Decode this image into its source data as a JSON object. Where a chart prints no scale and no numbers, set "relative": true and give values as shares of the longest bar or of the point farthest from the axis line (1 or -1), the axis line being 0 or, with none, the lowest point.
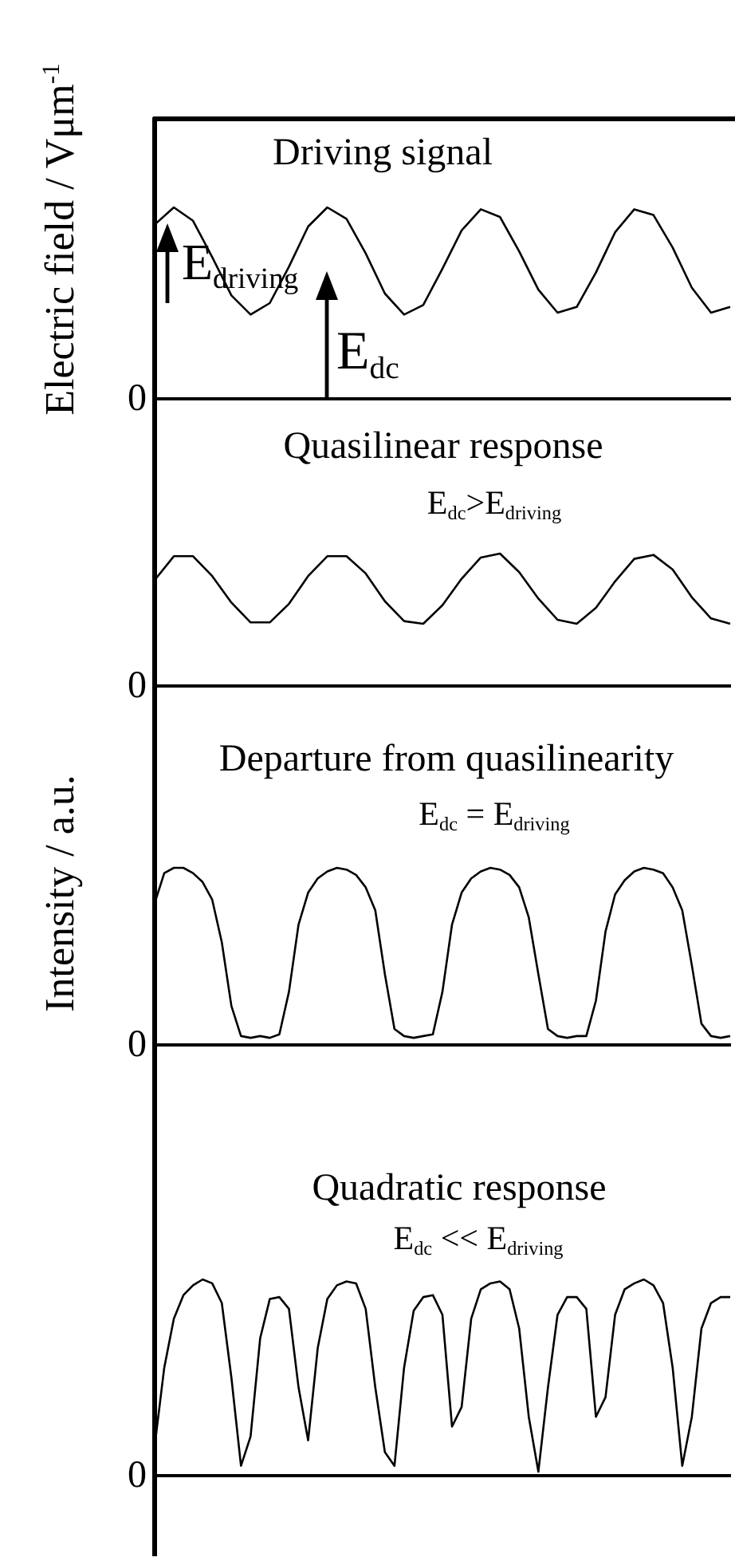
{
  "chart_data": [
    {
      "type": "line",
      "title": "Driving signal",
      "ylabel": "Electric field / Vμm$^{-1}$",
      "relative": true,
      "marker": "none",
      "annotations": [
        "E$_{driving}$",
        "E$_{dc}$",
        "0"
      ],
      "categories": [
        null,
        null,
        null,
        null,
        null,
        null,
        null,
        null,
        null,
        null,
        null,
        null,
        null,
        null,
        null,
        null,
        null,
        null,
        null,
        null,
        null,
        null,
        null,
        null,
        null,
        null,
        null,
        null,
        null,
        null,
        null
      ],
      "color": "#000000",
      "values": [
        0.91,
        1.0,
        0.93,
        0.74,
        0.54,
        0.44,
        0.5,
        0.69,
        0.9,
        1.0,
        0.94,
        0.76,
        0.55,
        0.44,
        0.49,
        0.68,
        0.88,
        0.99,
        0.95,
        0.77,
        0.57,
        0.45,
        0.48,
        0.66,
        0.87,
        0.99,
        0.96,
        0.79,
        0.58,
        0.45,
        0.48
      ]
    },
    {
      "type": "line",
      "title": "Quasilinear response",
      "relative": true,
      "marker": "none",
      "annotations": [
        "E$_{dc}$>E$_{driving}$",
        "0"
      ],
      "categories": [
        null,
        null,
        null,
        null,
        null,
        null,
        null,
        null,
        null,
        null,
        null,
        null,
        null,
        null,
        null,
        null,
        null,
        null,
        null,
        null,
        null,
        null,
        null,
        null,
        null,
        null,
        null,
        null,
        null,
        null,
        null
      ],
      "color": "#000000",
      "values": [
        0.8,
        0.98,
        0.98,
        0.83,
        0.63,
        0.48,
        0.48,
        0.62,
        0.83,
        0.98,
        0.98,
        0.85,
        0.64,
        0.49,
        0.47,
        0.61,
        0.81,
        0.97,
        1.0,
        0.86,
        0.66,
        0.5,
        0.47,
        0.59,
        0.79,
        0.96,
        0.99,
        0.88,
        0.67,
        0.51,
        0.47
      ]
    },
    {
      "type": "line",
      "title": "Departure from quasilinearity",
      "ylabel": "Intensity / a.u.",
      "relative": true,
      "marker": "none",
      "annotations": [
        "E$_{dc}$ = E$_{driving}$",
        "0"
      ],
      "categories": [
        null,
        null,
        null,
        null,
        null,
        null,
        null,
        null,
        null,
        null,
        null,
        null,
        null,
        null,
        null,
        null,
        null,
        null,
        null,
        null,
        null,
        null,
        null,
        null,
        null,
        null,
        null,
        null,
        null,
        null,
        null,
        null,
        null,
        null,
        null,
        null,
        null,
        null,
        null,
        null,
        null,
        null,
        null,
        null,
        null,
        null,
        null,
        null,
        null,
        null,
        null,
        null,
        null,
        null,
        null,
        null,
        null,
        null,
        null,
        null,
        null
      ],
      "color": "#000000",
      "values": [
        0.8,
        0.97,
        1.0,
        1.0,
        0.97,
        0.92,
        0.82,
        0.58,
        0.22,
        0.05,
        0.04,
        0.05,
        0.04,
        0.06,
        0.3,
        0.68,
        0.86,
        0.94,
        0.98,
        1.0,
        0.99,
        0.96,
        0.89,
        0.76,
        0.4,
        0.09,
        0.05,
        0.04,
        0.05,
        0.06,
        0.3,
        0.68,
        0.86,
        0.94,
        0.98,
        1.0,
        0.99,
        0.96,
        0.89,
        0.72,
        0.4,
        0.09,
        0.05,
        0.04,
        0.05,
        0.05,
        0.25,
        0.64,
        0.85,
        0.93,
        0.98,
        1.0,
        0.99,
        0.97,
        0.89,
        0.76,
        0.45,
        0.12,
        0.05,
        0.04,
        0.05
      ]
    },
    {
      "type": "line",
      "title": "Quadratic response",
      "relative": true,
      "marker": "none",
      "annotations": [
        "E$_{dc}$ << E$_{driving}$",
        "0"
      ],
      "categories": [
        null,
        null,
        null,
        null,
        null,
        null,
        null,
        null,
        null,
        null,
        null,
        null,
        null,
        null,
        null,
        null,
        null,
        null,
        null,
        null,
        null,
        null,
        null,
        null,
        null,
        null,
        null,
        null,
        null,
        null,
        null,
        null,
        null,
        null,
        null,
        null,
        null,
        null,
        null,
        null,
        null,
        null,
        null,
        null,
        null,
        null,
        null,
        null,
        null,
        null,
        null,
        null,
        null,
        null,
        null,
        null,
        null,
        null,
        null,
        null,
        null
      ],
      "color": "#000000",
      "values": [
        0.15,
        0.55,
        0.8,
        0.92,
        0.97,
        1.0,
        0.98,
        0.88,
        0.5,
        0.05,
        0.2,
        0.7,
        0.9,
        0.91,
        0.85,
        0.45,
        0.18,
        0.65,
        0.9,
        0.97,
        0.99,
        0.98,
        0.85,
        0.45,
        0.12,
        0.05,
        0.55,
        0.84,
        0.91,
        0.92,
        0.82,
        0.25,
        0.35,
        0.8,
        0.95,
        0.98,
        0.99,
        0.95,
        0.75,
        0.3,
        0.02,
        0.45,
        0.82,
        0.91,
        0.91,
        0.85,
        0.3,
        0.4,
        0.82,
        0.95,
        0.98,
        1.0,
        0.97,
        0.88,
        0.55,
        0.05,
        0.3,
        0.75,
        0.88,
        0.91,
        0.91
      ]
    }
  ]
}
